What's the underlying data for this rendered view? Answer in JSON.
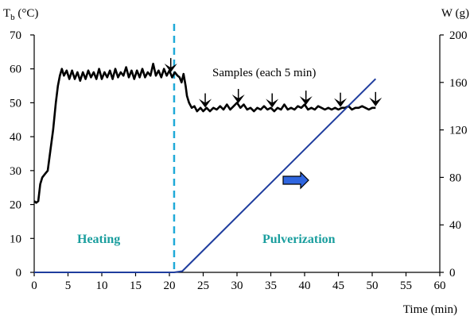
{
  "chart_data": {
    "type": "line",
    "x_axis": {
      "label": "Time (min)",
      "range": [
        0,
        60
      ],
      "ticks": [
        0,
        5,
        10,
        15,
        20,
        25,
        30,
        35,
        40,
        45,
        50,
        55,
        60
      ]
    },
    "y_axis_left": {
      "label_main": "T",
      "label_sub": "b",
      "label_unit": " (°C)",
      "range": [
        0,
        70
      ],
      "ticks": [
        0,
        10,
        20,
        30,
        40,
        50,
        60,
        70
      ]
    },
    "y_axis_right": {
      "label": "W (g)",
      "range": [
        0,
        200
      ],
      "ticks": [
        0,
        40,
        80,
        120,
        160,
        200
      ]
    },
    "series": [
      {
        "axis": "left",
        "color": "#000000",
        "points": [
          [
            0.0,
            21
          ],
          [
            0.3,
            20.5
          ],
          [
            0.6,
            21
          ],
          [
            0.9,
            26
          ],
          [
            1.2,
            28
          ],
          [
            1.6,
            29
          ],
          [
            2.0,
            30
          ],
          [
            2.4,
            36
          ],
          [
            2.8,
            42
          ],
          [
            3.2,
            50
          ],
          [
            3.5,
            55
          ],
          [
            3.8,
            58
          ],
          [
            4.1,
            60
          ],
          [
            4.4,
            58
          ],
          [
            4.8,
            59.5
          ],
          [
            5.2,
            57
          ],
          [
            5.6,
            59.5
          ],
          [
            6.0,
            57
          ],
          [
            6.4,
            59
          ],
          [
            6.8,
            56.5
          ],
          [
            7.2,
            59
          ],
          [
            7.6,
            57
          ],
          [
            8.0,
            59.5
          ],
          [
            8.4,
            57.5
          ],
          [
            8.8,
            59
          ],
          [
            9.2,
            57
          ],
          [
            9.6,
            60
          ],
          [
            10.0,
            57
          ],
          [
            10.4,
            59
          ],
          [
            10.8,
            57.5
          ],
          [
            11.2,
            59.5
          ],
          [
            11.6,
            57
          ],
          [
            12.0,
            60
          ],
          [
            12.4,
            57.5
          ],
          [
            12.8,
            59
          ],
          [
            13.2,
            58
          ],
          [
            13.6,
            60.5
          ],
          [
            14.0,
            57.5
          ],
          [
            14.4,
            59.5
          ],
          [
            14.8,
            57
          ],
          [
            15.2,
            59.5
          ],
          [
            15.6,
            57.5
          ],
          [
            16.0,
            60
          ],
          [
            16.4,
            57.5
          ],
          [
            16.8,
            59
          ],
          [
            17.2,
            58
          ],
          [
            17.6,
            61.5
          ],
          [
            18.0,
            58
          ],
          [
            18.4,
            59.5
          ],
          [
            18.8,
            57.5
          ],
          [
            19.2,
            60
          ],
          [
            19.6,
            58
          ],
          [
            20.0,
            59.5
          ],
          [
            20.4,
            57.5
          ],
          [
            20.8,
            59
          ],
          [
            21.2,
            58
          ],
          [
            21.5,
            57.5
          ],
          [
            21.8,
            56
          ],
          [
            22.1,
            58.5
          ],
          [
            22.4,
            55
          ],
          [
            22.6,
            52
          ],
          [
            22.9,
            50
          ],
          [
            23.3,
            48.5
          ],
          [
            23.7,
            49
          ],
          [
            24.1,
            47.5
          ],
          [
            24.6,
            48.5
          ],
          [
            25.0,
            47.5
          ],
          [
            25.5,
            48.5
          ],
          [
            26.0,
            47.5
          ],
          [
            26.5,
            48.5
          ],
          [
            27.0,
            48
          ],
          [
            27.5,
            49
          ],
          [
            28.0,
            48
          ],
          [
            28.5,
            49.5
          ],
          [
            29.0,
            48
          ],
          [
            29.5,
            49
          ],
          [
            30.0,
            50
          ],
          [
            30.5,
            48.5
          ],
          [
            31.0,
            49.5
          ],
          [
            31.5,
            48
          ],
          [
            32.0,
            48.5
          ],
          [
            32.5,
            47.5
          ],
          [
            33.0,
            48.5
          ],
          [
            33.5,
            48
          ],
          [
            34.0,
            49
          ],
          [
            34.5,
            48
          ],
          [
            35.0,
            48.5
          ],
          [
            35.5,
            47.5
          ],
          [
            36.0,
            48.5
          ],
          [
            36.5,
            48
          ],
          [
            37.0,
            49.5
          ],
          [
            37.5,
            48
          ],
          [
            38.0,
            48.5
          ],
          [
            38.5,
            48
          ],
          [
            39.0,
            49
          ],
          [
            39.5,
            48.5
          ],
          [
            40.0,
            49.5
          ],
          [
            40.5,
            48
          ],
          [
            41.0,
            48.5
          ],
          [
            41.5,
            48
          ],
          [
            42.0,
            49
          ],
          [
            42.5,
            48.5
          ],
          [
            43.0,
            48
          ],
          [
            43.5,
            48.5
          ],
          [
            44.0,
            48
          ],
          [
            44.5,
            48.5
          ],
          [
            45.0,
            48
          ],
          [
            45.5,
            48.5
          ],
          [
            46.0,
            48.5
          ],
          [
            46.5,
            49
          ],
          [
            47.0,
            48
          ],
          [
            47.5,
            48.5
          ],
          [
            48.0,
            48.5
          ],
          [
            48.5,
            49
          ],
          [
            49.0,
            48.5
          ],
          [
            49.5,
            48
          ],
          [
            50.0,
            48.5
          ],
          [
            50.5,
            48.5
          ]
        ]
      },
      {
        "axis": "right",
        "color": "#1f3d9e",
        "points": [
          [
            0,
            0
          ],
          [
            20.7,
            0
          ],
          [
            21.9,
            1
          ],
          [
            50.5,
            163
          ]
        ]
      }
    ],
    "sample_markers_time": [
      20.2,
      25.3,
      30.2,
      35.2,
      40.2,
      45.3,
      50.5
    ],
    "divider_x": 20.7,
    "divider_color": "#20aad8",
    "phase_labels": {
      "heating": "Heating",
      "pulverization": "Pulverization"
    },
    "annotation": "Samples (each 5 min)",
    "arrow_color": "#2f66e0",
    "grid": false,
    "legend": "none"
  }
}
